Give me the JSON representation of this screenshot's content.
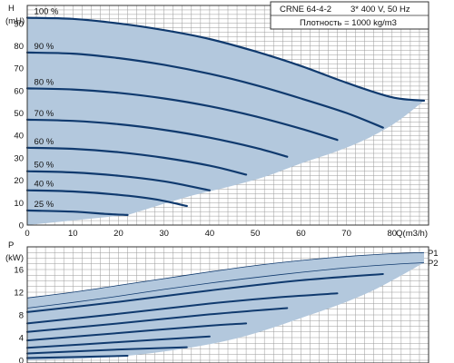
{
  "chart_data": [
    {
      "type": "line",
      "title": "",
      "legend": {
        "model": "CRNE 64-4-2",
        "supply": "3* 400 V, 50 Hz",
        "density": "Плотность = 1000 kg/m3"
      },
      "ylabel": "H",
      "yunit": "(mH)",
      "xlabel": "Q(m3/h)",
      "xlim": [
        0,
        88
      ],
      "ylim": [
        0,
        98
      ],
      "xticks": [
        0,
        10,
        20,
        30,
        40,
        50,
        60,
        70,
        80
      ],
      "yticks": [
        0,
        10,
        20,
        30,
        40,
        50,
        60,
        70,
        80,
        90
      ],
      "grid": true,
      "envelope": {
        "upper": [
          [
            0,
            92.5
          ],
          [
            10,
            92
          ],
          [
            20,
            90
          ],
          [
            30,
            87
          ],
          [
            40,
            83
          ],
          [
            50,
            77.5
          ],
          [
            60,
            71
          ],
          [
            70,
            63.5
          ],
          [
            80,
            57
          ],
          [
            87,
            55.5
          ]
        ],
        "lower": [
          [
            22,
            4.5
          ],
          [
            35,
            12.5
          ],
          [
            44,
            17
          ],
          [
            52,
            21.5
          ],
          [
            60,
            27.5
          ],
          [
            68,
            33
          ],
          [
            75,
            39
          ],
          [
            81,
            46
          ],
          [
            87,
            55.5
          ]
        ]
      },
      "series": [
        {
          "name": "100 %",
          "points": [
            [
              0,
              92.5
            ],
            [
              10,
              92
            ],
            [
              20,
              90
            ],
            [
              30,
              87
            ],
            [
              40,
              83
            ],
            [
              50,
              77.5
            ],
            [
              60,
              71
            ],
            [
              70,
              63.5
            ],
            [
              80,
              57
            ],
            [
              87,
              55.5
            ]
          ]
        },
        {
          "name": "90 %",
          "points": [
            [
              0,
              77
            ],
            [
              10,
              76.5
            ],
            [
              20,
              74.5
            ],
            [
              30,
              71.5
            ],
            [
              40,
              67.5
            ],
            [
              50,
              62.5
            ],
            [
              60,
              56.5
            ],
            [
              70,
              50
            ],
            [
              78,
              43.5
            ]
          ]
        },
        {
          "name": "80 %",
          "points": [
            [
              0,
              61
            ],
            [
              10,
              60.5
            ],
            [
              20,
              59
            ],
            [
              30,
              56.5
            ],
            [
              40,
              53
            ],
            [
              50,
              48.5
            ],
            [
              60,
              43
            ],
            [
              68,
              38
            ]
          ]
        },
        {
          "name": "70 %",
          "points": [
            [
              0,
              47
            ],
            [
              10,
              46.5
            ],
            [
              20,
              45
            ],
            [
              30,
              42.5
            ],
            [
              40,
              39
            ],
            [
              50,
              34.5
            ],
            [
              57,
              30.5
            ]
          ]
        },
        {
          "name": "60 %",
          "points": [
            [
              0,
              34.5
            ],
            [
              10,
              34
            ],
            [
              20,
              32.5
            ],
            [
              30,
              30
            ],
            [
              40,
              26.5
            ],
            [
              48,
              22.5
            ]
          ]
        },
        {
          "name": "50 %",
          "points": [
            [
              0,
              24
            ],
            [
              10,
              23.5
            ],
            [
              20,
              22
            ],
            [
              30,
              19.5
            ],
            [
              40,
              15.5
            ]
          ]
        },
        {
          "name": "40 %",
          "points": [
            [
              0,
              15.5
            ],
            [
              10,
              15
            ],
            [
              20,
              13.5
            ],
            [
              28,
              11.5
            ],
            [
              35,
              8.5
            ]
          ]
        },
        {
          "name": "25 %",
          "points": [
            [
              0,
              6.5
            ],
            [
              10,
              6
            ],
            [
              17,
              5
            ],
            [
              22,
              4.5
            ]
          ]
        }
      ]
    },
    {
      "type": "line",
      "title": "",
      "ylabel": "P",
      "yunit": "(kW)",
      "xlabel": "",
      "xlim": [
        0,
        88
      ],
      "ylim": [
        0,
        20
      ],
      "yticks": [
        0,
        4,
        8,
        12,
        16
      ],
      "grid": true,
      "series": [
        {
          "name": "P1",
          "points": [
            [
              0,
              11
            ],
            [
              10,
              12
            ],
            [
              20,
              13.2
            ],
            [
              30,
              14.4
            ],
            [
              40,
              15.6
            ],
            [
              50,
              16.7
            ],
            [
              60,
              17.6
            ],
            [
              70,
              18.3
            ],
            [
              80,
              18.8
            ],
            [
              87,
              19
            ]
          ]
        },
        {
          "name": "P2",
          "points": [
            [
              0,
              9.2
            ],
            [
              10,
              10.2
            ],
            [
              20,
              11.3
            ],
            [
              30,
              12.5
            ],
            [
              40,
              13.6
            ],
            [
              50,
              14.6
            ],
            [
              60,
              15.5
            ],
            [
              70,
              16.3
            ],
            [
              80,
              16.9
            ],
            [
              87,
              17.2
            ]
          ]
        },
        {
          "name": "",
          "points": [
            [
              0,
              8.5
            ],
            [
              20,
              10.3
            ],
            [
              40,
              12.3
            ],
            [
              60,
              14.1
            ],
            [
              78,
              15.2
            ]
          ]
        },
        {
          "name": "",
          "points": [
            [
              0,
              6.5
            ],
            [
              20,
              8.2
            ],
            [
              40,
              10
            ],
            [
              55,
              11.1
            ],
            [
              68,
              11.8
            ]
          ]
        },
        {
          "name": "",
          "points": [
            [
              0,
              5
            ],
            [
              20,
              6.5
            ],
            [
              40,
              8.1
            ],
            [
              57,
              9.2
            ]
          ]
        },
        {
          "name": "",
          "points": [
            [
              0,
              3.5
            ],
            [
              20,
              4.8
            ],
            [
              40,
              6.1
            ],
            [
              48,
              6.5
            ]
          ]
        },
        {
          "name": "",
          "points": [
            [
              0,
              2.2
            ],
            [
              20,
              3.2
            ],
            [
              40,
              4.2
            ]
          ]
        },
        {
          "name": "",
          "points": [
            [
              0,
              1.2
            ],
            [
              20,
              1.9
            ],
            [
              35,
              2.3
            ]
          ]
        },
        {
          "name": "",
          "points": [
            [
              0,
              0.4
            ],
            [
              12,
              0.6
            ],
            [
              22,
              0.8
            ]
          ]
        }
      ]
    }
  ]
}
